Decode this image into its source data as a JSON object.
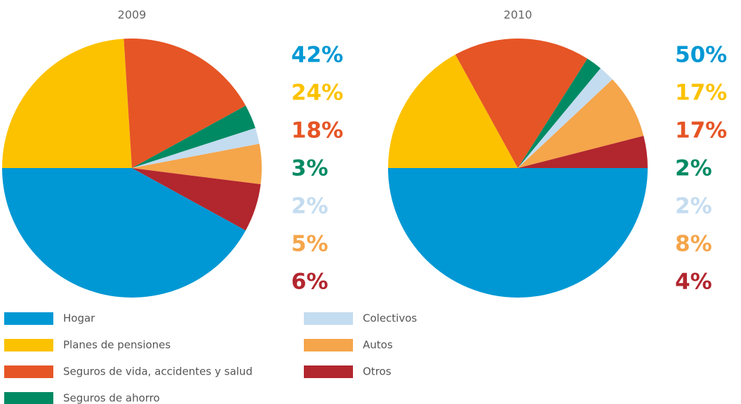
{
  "chart_data": [
    {
      "type": "pie",
      "title": "2009",
      "values": [
        42,
        24,
        18,
        3,
        2,
        5,
        6
      ],
      "value_labels": [
        "42%",
        "24%",
        "18%",
        "3%",
        "2%",
        "5%",
        "6%"
      ]
    },
    {
      "type": "pie",
      "title": "2010",
      "values": [
        50,
        17,
        17,
        2,
        2,
        8,
        4
      ],
      "value_labels": [
        "50%",
        "17%",
        "17%",
        "2%",
        "2%",
        "8%",
        "4%"
      ]
    }
  ],
  "legend": {
    "categories": [
      "Hogar",
      "Planes de pensiones",
      "Seguros de vida, accidentes y salud",
      "Seguros de ahorro",
      "Colectivos",
      "Autos",
      "Otros"
    ],
    "colors": [
      "#0098d4",
      "#fcc200",
      "#e65525",
      "#008a63",
      "#c4dcf0",
      "#f5a54a",
      "#b2262e"
    ]
  }
}
